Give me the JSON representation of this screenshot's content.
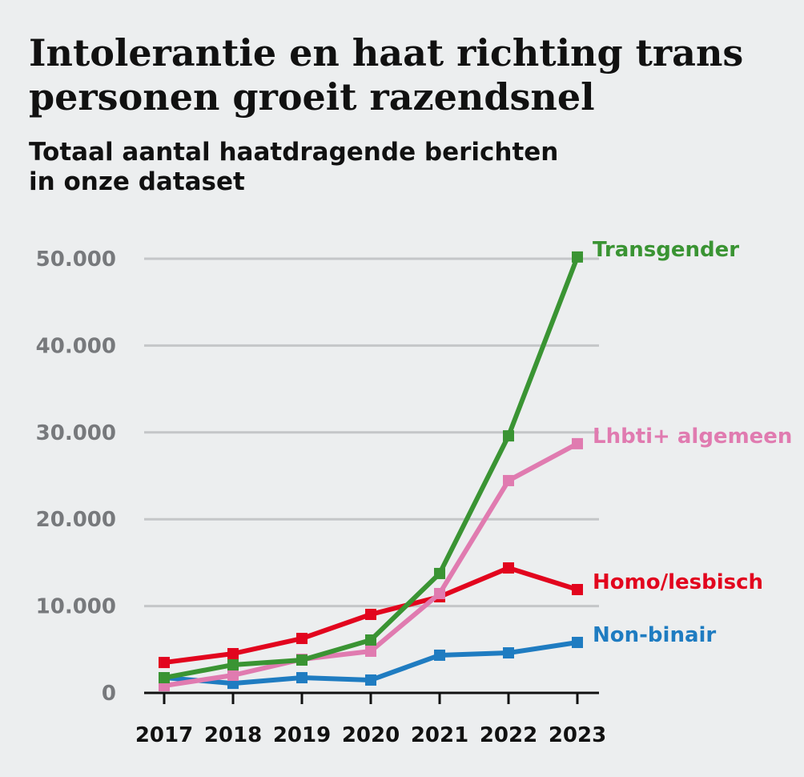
{
  "chart_data": {
    "type": "line",
    "title": "Intolerantie en haat richting trans personen groeit razendsnel",
    "subtitle": "Totaal aantal haatdragende berichten in onze dataset",
    "categories": [
      "2017",
      "2018",
      "2019",
      "2020",
      "2021",
      "2022",
      "2023"
    ],
    "series": [
      {
        "name": "Transgender",
        "color": "#3a9433",
        "values": [
          1750,
          3230,
          3780,
          6090,
          13750,
          29600,
          50200
        ]
      },
      {
        "name": "Lhbti+ algemeen",
        "color": "#e07bb0",
        "values": [
          830,
          2030,
          3870,
          4800,
          11440,
          24450,
          28700
        ]
      },
      {
        "name": "Homo/lesbisch",
        "color": "#e2051e",
        "values": [
          3500,
          4520,
          6270,
          9040,
          11070,
          14390,
          11900
        ]
      },
      {
        "name": "Non-binair",
        "color": "#1f7cc1",
        "values": [
          1750,
          1100,
          1750,
          1480,
          4340,
          4610,
          5810
        ]
      }
    ],
    "ylim": [
      0,
      50000
    ],
    "yticks": [
      0,
      {
        "value": 10000,
        "label": "10.000"
      },
      {
        "value": 20000,
        "label": "20.000"
      },
      {
        "value": 30000,
        "label": "30.000"
      },
      {
        "value": 40000,
        "label": "40.000"
      },
      {
        "value": 50000,
        "label": "50.000"
      }
    ],
    "grid": true
  }
}
